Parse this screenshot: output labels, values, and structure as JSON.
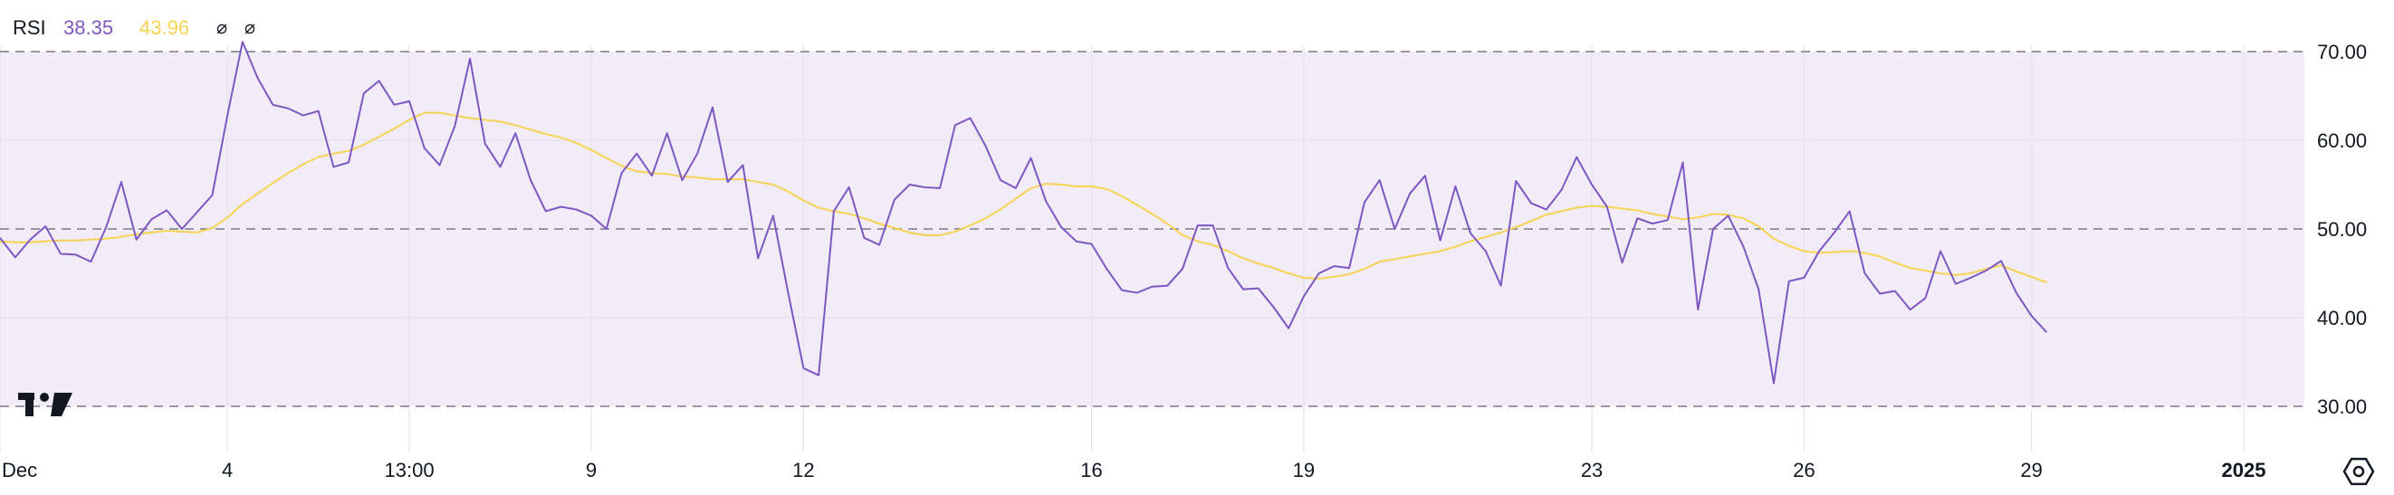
{
  "legend": {
    "name": "RSI",
    "rsi_value": "38.35",
    "ma_value": "43.96",
    "glyph1": "⌀",
    "glyph2": "⌀"
  },
  "icons": {
    "logo": "tradingview-logo-icon",
    "settings": "settings-gear-icon"
  },
  "colors": {
    "rsi_line": "#7e57c2",
    "ma_line": "#f7d354",
    "band_fill": "#f1ecf8",
    "band_lines": "#787b86",
    "grid": "#e6e3ec"
  },
  "chart_data": {
    "type": "line",
    "ylim": [
      24,
      73
    ],
    "band": {
      "upper": 70,
      "middle": 50,
      "lower": 30
    },
    "y_ticks": [
      "70.00",
      "60.00",
      "50.00",
      "40.00",
      "30.00"
    ],
    "y_tick_values": [
      70,
      60,
      50,
      40,
      30
    ],
    "x_ticks": [
      {
        "label": "Dec",
        "x": 0,
        "bold": false
      },
      {
        "label": "4",
        "x": 15,
        "bold": false
      },
      {
        "label": "13:00",
        "x": 27,
        "bold": false
      },
      {
        "label": "9",
        "x": 39,
        "bold": false
      },
      {
        "label": "12",
        "x": 53,
        "bold": false
      },
      {
        "label": "16",
        "x": 72,
        "bold": false
      },
      {
        "label": "19",
        "x": 86,
        "bold": false
      },
      {
        "label": "23",
        "x": 105,
        "bold": false
      },
      {
        "label": "26",
        "x": 119,
        "bold": false
      },
      {
        "label": "29",
        "x": 134,
        "bold": false
      },
      {
        "label": "2025",
        "x": 148,
        "bold": true
      }
    ],
    "xlim": [
      0,
      152
    ],
    "series": [
      {
        "values": [
          49,
          46.8,
          48.8,
          50.3,
          47.2,
          47.1,
          46.3,
          50.2,
          55.3,
          48.8,
          51.1,
          52.1,
          50,
          51.9,
          53.8,
          62.8,
          71.1,
          67,
          64,
          63.6,
          62.8,
          63.3,
          57,
          57.5,
          65.3,
          66.7,
          64,
          64.4,
          59.1,
          57.2,
          61.6,
          69.2,
          59.6,
          57,
          60.8,
          55.5,
          52,
          52.5,
          52.2,
          51.5,
          50,
          56.3,
          58.5,
          56,
          60.8,
          55.5,
          58.5,
          63.7,
          55.3,
          57.2,
          46.7,
          51.5,
          42.7,
          34.3,
          33.5,
          52,
          54.7,
          49,
          48.2,
          53.3,
          55,
          54.7,
          54.6,
          61.7,
          62.5,
          59.4,
          55.5,
          54.6,
          58,
          53.1,
          50.2,
          48.6,
          48.3,
          45.5,
          43.1,
          42.8,
          43.5,
          43.6,
          45.5,
          50.4,
          50.4,
          45.6,
          43.2,
          43.3,
          41.2,
          38.8,
          42.4,
          45,
          45.8,
          45.6,
          53,
          55.5,
          50,
          54,
          56,
          48.7,
          54.8,
          49.5,
          47.5,
          43.6,
          55.4,
          52.9,
          52.2,
          54.4,
          58.1,
          55,
          52.5,
          46.2,
          51.2,
          50.6,
          51,
          57.5,
          40.9,
          50,
          51.5,
          48,
          43.2,
          32.6,
          44.1,
          44.5,
          47.5,
          49.6,
          52,
          45,
          42.7,
          43,
          40.9,
          42.2,
          47.5,
          43.8,
          44.5,
          45.3,
          46.4,
          42.8,
          40.2,
          38.35
        ],
        "color": "#7e57c2"
      },
      {
        "values": [
          48.6,
          48.5,
          48.5,
          48.6,
          48.7,
          48.7,
          48.8,
          48.9,
          49.1,
          49.4,
          49.6,
          49.8,
          49.7,
          49.6,
          50.1,
          51.3,
          52.8,
          54,
          55.2,
          56.3,
          57.3,
          58.1,
          58.5,
          58.8,
          59.5,
          60.4,
          61.3,
          62.3,
          63.1,
          63.1,
          62.8,
          62.5,
          62.3,
          62.1,
          61.7,
          61.2,
          60.7,
          60.3,
          59.7,
          58.9,
          58,
          57.1,
          56.5,
          56.3,
          56.2,
          55.9,
          55.8,
          55.6,
          55.6,
          55.6,
          55.3,
          55,
          54.2,
          53.2,
          52.4,
          52,
          51.7,
          51.2,
          50.6,
          50.1,
          49.6,
          49.3,
          49.3,
          49.7,
          50.4,
          51.2,
          52.2,
          53.4,
          54.6,
          55.1,
          55,
          54.8,
          54.8,
          54.5,
          53.7,
          52.7,
          51.7,
          50.6,
          49.3,
          48.6,
          48.2,
          47.5,
          46.7,
          46.1,
          45.6,
          45,
          44.5,
          44.4,
          44.6,
          44.9,
          45.5,
          46.3,
          46.6,
          46.9,
          47.2,
          47.5,
          48,
          48.6,
          49.1,
          49.6,
          50.2,
          50.9,
          51.6,
          52,
          52.4,
          52.6,
          52.5,
          52.3,
          52.1,
          51.7,
          51.4,
          51.1,
          51.3,
          51.7,
          51.6,
          51.2,
          50.3,
          48.9,
          48.1,
          47.5,
          47.3,
          47.4,
          47.5,
          47.3,
          46.9,
          46.2,
          45.6,
          45.3,
          45,
          44.8,
          45,
          45.5,
          45.9,
          45.2,
          44.6,
          43.96
        ],
        "color": "#f7d354"
      }
    ]
  }
}
